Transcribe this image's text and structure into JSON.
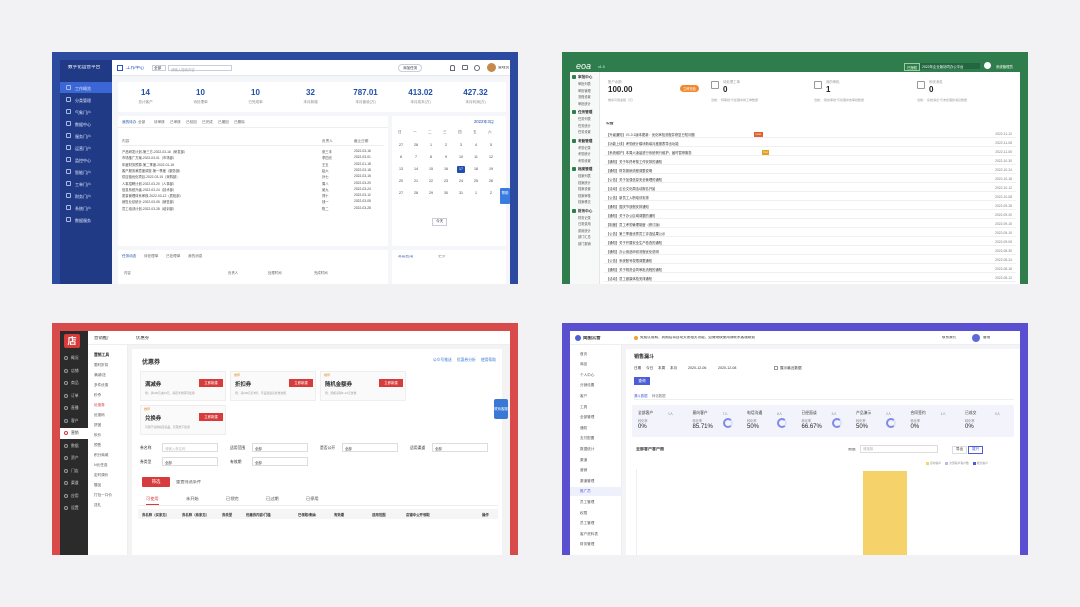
{
  "p1": {
    "logo": "数字化运营平台",
    "header_nav": "工作中心",
    "search_placeholder": "请输入搜索内容",
    "header_btn": "添加任务",
    "header_user": "管理员",
    "sidebar": [
      {
        "label": "工作概览",
        "active": true
      },
      {
        "label": "分类管理"
      },
      {
        "label": "气象门户"
      },
      {
        "label": "数据中心"
      },
      {
        "label": "服务门户"
      },
      {
        "label": "运营门户"
      },
      {
        "label": "监控中心"
      },
      {
        "label": "智能门户"
      },
      {
        "label": "工单门户"
      },
      {
        "label": "财务门户"
      },
      {
        "label": "系统门户"
      },
      {
        "label": "数据服务"
      }
    ],
    "stats": [
      {
        "value": "14",
        "label": "总计客户"
      },
      {
        "value": "10",
        "label": "待处理单"
      },
      {
        "value": "10",
        "label": "已完成单"
      },
      {
        "value": "32",
        "label": "本月新增"
      },
      {
        "value": "787.01",
        "label": "本月营收(万)"
      },
      {
        "value": "413.02",
        "label": "本月成本(万)"
      },
      {
        "value": "427.32",
        "label": "本月利润(万)"
      }
    ],
    "tabs": [
      "我的待办",
      "全部",
      "待审核",
      "已审核",
      "已驳回",
      "已完成",
      "已撤回",
      "已删除"
    ],
    "table_head": [
      "内容",
      "负责人",
      "截止日期"
    ],
    "rows": [
      {
        "c": "产品研发计划-第三方-2022-03-16（研发部）",
        "o": "张三丰",
        "d": "2022-03-16"
      },
      {
        "c": "市场推广方案-2022-03-01（市场部）",
        "o": "李四光",
        "d": "2022-03-01"
      },
      {
        "c": "年度财务预算-第二季度-2022-01-18",
        "o": "王五",
        "d": "2022-01-18"
      },
      {
        "c": "客户服务满意度调查-第一季度（服务部）",
        "o": "赵六",
        "d": "2022-03-18"
      },
      {
        "c": "供应链优化项目-2022-03-15（采购部）",
        "o": "孙七",
        "d": "2022-03-15"
      },
      {
        "c": "人事招聘计划-2022-03-20（人事部）",
        "o": "周八",
        "d": "2022-03-20"
      },
      {
        "c": "信息系统升级-2022-03-24（技术部）",
        "o": "吴九",
        "d": "2022-03-24"
      },
      {
        "c": "质量管理体系审核-2022-03-12（质检部）",
        "o": "郑十",
        "d": "2022-03-12"
      },
      {
        "c": "销售业绩统计-2022-03-05（销售部）",
        "o": "钱一",
        "d": "2022-03-05"
      },
      {
        "c": "员工培训计划-2022-03-28（培训部）",
        "o": "陈二",
        "d": "2022-03-28"
      }
    ],
    "calendar": {
      "title": "2022年3月",
      "weekdays": [
        "日",
        "一",
        "二",
        "三",
        "四",
        "五",
        "六"
      ],
      "days": [
        "27",
        "28",
        "1",
        "2",
        "3",
        "4",
        "5",
        "6",
        "7",
        "8",
        "9",
        "10",
        "11",
        "12",
        "13",
        "14",
        "15",
        "16",
        "17",
        "18",
        "19",
        "20",
        "21",
        "22",
        "23",
        "24",
        "25",
        "26",
        "27",
        "28",
        "29",
        "30",
        "31",
        "1",
        "2"
      ],
      "today": "17"
    },
    "cal_btn": "今天",
    "float": "帮助",
    "bottom_tabs": [
      "任务动态",
      "待处理单",
      "已处理单",
      "我的消息"
    ],
    "bottom_cols": [
      "内容",
      "负责人",
      "处理时间",
      "完成时间"
    ],
    "bottom_right": [
      "常用应用",
      "更多"
    ]
  },
  "p2": {
    "logo": "eoa",
    "version": "v1.0",
    "header_status": "已授权",
    "header_info": "2022年企业版协同办公平台",
    "header_user": "系统管理员",
    "header_tag": "已更新",
    "sidebar": [
      {
        "section": "审批中心",
        "items": [
          "审批列表",
          "审批管理",
          "流程设置",
          "审批统计"
        ]
      },
      {
        "section": "任务管理",
        "items": [
          "任务列表",
          "任务统计",
          "任务设置"
        ]
      },
      {
        "section": "考勤管理",
        "items": [
          "考勤记录",
          "考勤统计",
          "考勤设置"
        ]
      },
      {
        "section": "档案管理",
        "items": [
          "档案列表",
          "档案统计",
          "档案设置",
          "档案审核",
          "档案移交"
        ]
      },
      {
        "section": "财务中心",
        "items": [
          "财务记录",
          "日常费用",
          "费用统计",
          "部门汇总",
          "部门报销"
        ]
      }
    ],
    "cards": [
      {
        "label": "账户余额",
        "value": "100.00",
        "note": "剩余可用金额（元）",
        "btn": "立即充值"
      },
      {
        "label": "待处理工单",
        "value": "0",
        "note": "当前：“待审批”与处理中的工单数量"
      },
      {
        "label": "我的审批",
        "value": "1",
        "note": "当前：“我的审批”与处理中的审批数量"
      },
      {
        "label": "系统消息",
        "value": "0",
        "note": "当前：“系统消息”与未处理的消息数量"
      }
    ],
    "list_title": "公告",
    "items": [
      {
        "t": "【升级通知】V1.0.1版本更新：优化审批流程并修复已知问题",
        "d": "2022-11-12",
        "b": "new"
      },
      {
        "t": "【功能上线】考勤统计模块新增月度报表导出功能",
        "d": "2022-11-08"
      },
      {
        "t": "【系统维护】本周六凌晨进行系统例行维护，届时暂停服务",
        "d": "2022-11-05",
        "b": "hot"
      },
      {
        "t": "【通知】关于年终考核工作安排的通知",
        "d": "2022-10-30"
      },
      {
        "t": "【通知】财务报销流程调整说明",
        "d": "2022-10-24"
      },
      {
        "t": "【公告】关于加强信息安全管理的通知",
        "d": "2022-10-18"
      },
      {
        "t": "【活动】企业文化周活动报名开始",
        "d": "2022-10-12"
      },
      {
        "t": "【公告】新员工入职培训安排",
        "d": "2022-10-08"
      },
      {
        "t": "【通知】国庆节放假安排通知",
        "d": "2022-09-28"
      },
      {
        "t": "【通知】关于办公区域调整的通知",
        "d": "2022-09-20"
      },
      {
        "t": "【制度】员工考勤管理制度（修订版）",
        "d": "2022-09-15"
      },
      {
        "t": "【公告】第三季度优秀员工评选结果公示",
        "d": "2022-09-10"
      },
      {
        "t": "【通知】关于开展安全生产检查的通知",
        "d": "2022-09-05"
      },
      {
        "t": "【通知】办公用品申领流程优化说明",
        "d": "2022-08-30"
      },
      {
        "t": "【公告】系统账号权限调整通知",
        "d": "2022-08-24"
      },
      {
        "t": "【通知】关于规范合同审批流程的通知",
        "d": "2022-08-18"
      },
      {
        "t": "【活动】员工健康体检安排通知",
        "d": "2022-08-12"
      }
    ]
  },
  "p3": {
    "logo": "店",
    "top_nav": "营销推广",
    "top_sub": "优惠券",
    "sidebar": [
      "概况",
      "店铺",
      "商品",
      "订单",
      "直播",
      "客户",
      "营销",
      "数据",
      "资产",
      "门店",
      "渠道",
      "应用",
      "设置"
    ],
    "sidebar_active": "营销",
    "sub_head": "营销工具",
    "sub_items": [
      "限时折扣",
      "满减/送",
      "多件优惠",
      "秒杀",
      "优惠券",
      "优惠码",
      "拼团",
      "砍价",
      "预售",
      "积分商城",
      "N元任选",
      "定时调价",
      "赠品",
      "打包一口价",
      "送礼"
    ],
    "sub_active": "优惠券",
    "page_title": "优惠券",
    "top_links": [
      "公众号推送",
      "优惠券分析",
      "使用帮助"
    ],
    "cards": [
      {
        "title": "满减券",
        "desc": "例：满100元减10元，满足条件即可使用",
        "btn": "立即新建"
      },
      {
        "title": "折扣券",
        "tag": "推荐",
        "desc": "例：满100元打8折，可设置最高优惠金额",
        "btn": "立即新建"
      },
      {
        "title": "随机金额券",
        "tag": "推荐",
        "desc": "例：随机获得5~10元优惠",
        "btn": "立即新建"
      },
      {
        "title": "兑换券",
        "tag": "推荐",
        "desc": "可用于兑换指定商品，仅限线下使用",
        "btn": "立即新建"
      }
    ],
    "filters": [
      {
        "label": "券名称",
        "ph": "请输入券名称"
      },
      {
        "label": "适用范围",
        "value": "全部"
      },
      {
        "label": "是否公开",
        "value": "全部"
      },
      {
        "label": "适用渠道",
        "value": "全部"
      },
      {
        "label": "券类型",
        "value": "全部"
      },
      {
        "label": "有效期",
        "value": "全部"
      }
    ],
    "btn_query": "筛选",
    "btn_reset": "重置筛选条件",
    "status_tabs": [
      "可使用",
      "未开始",
      "已领完",
      "已过期",
      "已停用"
    ],
    "status_active": "可使用",
    "table_cols": [
      "券名称（买家见）",
      "券名称（商家见）",
      "券类型",
      "优惠券内容/门槛",
      "已领取/剩余",
      "有效期",
      "适用范围",
      "店铺中公开领取",
      "操作"
    ],
    "float": "联系客服"
  },
  "p4": {
    "logo": "简图云营",
    "banner": "免费试用期，到期后将自动关闭相关功能，如需继续使用请联系客服续费",
    "header_link": "联系我们",
    "header_user": "管理",
    "sidebar": [
      "首页",
      "商品",
      "个人中心",
      "分销设置",
      "客户",
      "工具",
      "全部管理",
      "通知",
      "支付配置",
      "数据统计",
      "渠道",
      "营销",
      "渠道管理",
      "推广员",
      "员工管理",
      "权限",
      "员工管理",
      "客户资料表",
      "财务管理"
    ],
    "sidebar_active": "推广员",
    "page_title": "销售漏斗",
    "filter_tabs": [
      "日期",
      "今日",
      "本周",
      "本月"
    ],
    "date_from": "2020-12-06",
    "date_to": "2020-12-08",
    "date_btn": "展示最近数据",
    "btn": "查询",
    "sub_tabs": [
      "漏斗数据",
      "转化数据"
    ],
    "kpis": [
      {
        "label": "全部客户",
        "value": "0%",
        "sub": "转化率",
        "count": "1人"
      },
      {
        "label": "意向客户",
        "value": "85.71%",
        "sub": "转化率",
        "count": "7人"
      },
      {
        "label": "电话沟通",
        "value": "50%",
        "sub": "转化率",
        "count": "6人"
      },
      {
        "label": "已经面谈",
        "value": "66.67%",
        "sub": "转化率",
        "count": "3人"
      },
      {
        "label": "产品演示",
        "value": "50%",
        "sub": "转化率",
        "count": "2人"
      },
      {
        "label": "合同签约",
        "value": "0%",
        "sub": "转化率",
        "count": "1人"
      },
      {
        "label": "已成交",
        "value": "0%",
        "sub": "转化率",
        "count": "0人"
      }
    ],
    "chart_title": "全部客户客户图",
    "chart_label": "筛选",
    "chart_select": "请选择",
    "chart_btns": [
      "导出",
      "展开"
    ],
    "legend": [
      "意向客户",
      "全部客户客户数",
      "成交客户"
    ]
  }
}
